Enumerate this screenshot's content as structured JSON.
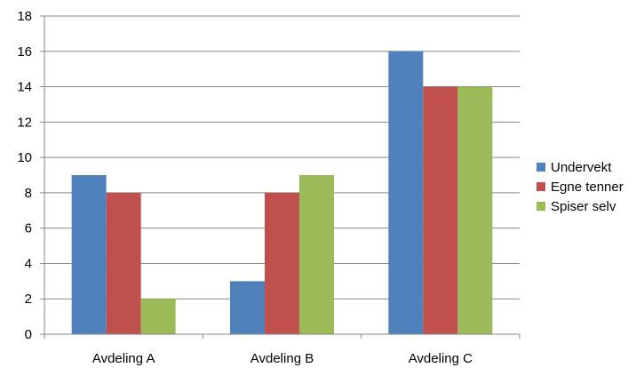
{
  "chart_data": {
    "type": "bar",
    "title": "",
    "xlabel": "",
    "ylabel": "",
    "categories": [
      "Avdeling A",
      "Avdeling B",
      "Avdeling C"
    ],
    "series": [
      {
        "name": "Undervekt",
        "values": [
          9,
          3,
          16
        ],
        "color": "#4F81BD"
      },
      {
        "name": "Egne tenner",
        "values": [
          8,
          8,
          14
        ],
        "color": "#C0504D"
      },
      {
        "name": "Spiser selv",
        "values": [
          2,
          9,
          14
        ],
        "color": "#9BBB59"
      }
    ],
    "ylim": [
      0,
      18
    ],
    "yticks": [
      "0",
      "2",
      "4",
      "6",
      "8",
      "10",
      "12",
      "14",
      "16",
      "18"
    ],
    "grid": true,
    "legend_position": "right"
  }
}
